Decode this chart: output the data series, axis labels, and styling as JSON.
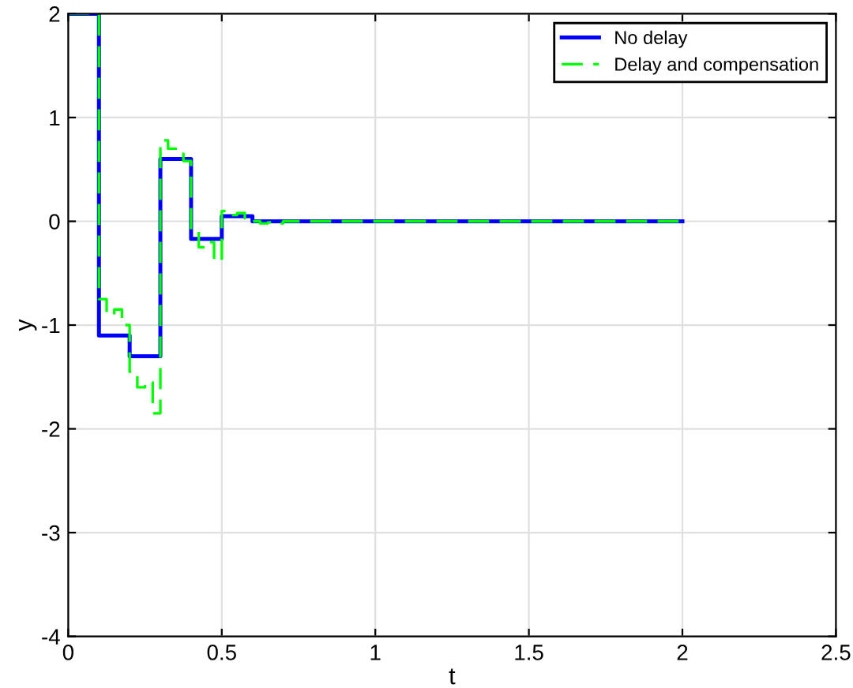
{
  "chart_data": {
    "type": "step",
    "xlabel": "t",
    "ylabel": "y",
    "xlim": [
      0,
      2.5
    ],
    "ylim": [
      -4,
      2
    ],
    "xticks": [
      0,
      0.5,
      1,
      1.5,
      2,
      2.5
    ],
    "yticks": [
      -4,
      -3,
      -2,
      -1,
      0,
      1,
      2
    ],
    "grid": true,
    "legend": "top right",
    "series": [
      {
        "name": "No delay",
        "color": "#0000ff",
        "line_style": "solid",
        "x": [
          0,
          0.1,
          0.2,
          0.3,
          0.4,
          0.5,
          0.6,
          0.7,
          0.8,
          0.9,
          1.0,
          1.1,
          1.2,
          1.3,
          1.4,
          1.5,
          1.6,
          1.7,
          1.8,
          1.9,
          2.0
        ],
        "values": [
          2,
          -1.1,
          -1.3,
          0.6,
          -0.17,
          0.05,
          0.0,
          0,
          0,
          0,
          0,
          0,
          0,
          0,
          0,
          0,
          0,
          0,
          0,
          0,
          0
        ]
      },
      {
        "name": "Delay and compensation",
        "color": "#00ff00",
        "line_style": "dashed",
        "x": [
          0,
          0.1,
          0.125,
          0.15,
          0.175,
          0.2,
          0.225,
          0.25,
          0.275,
          0.3,
          0.325,
          0.35,
          0.375,
          0.4,
          0.425,
          0.45,
          0.475,
          0.5,
          0.525,
          0.55,
          0.575,
          0.6,
          0.625,
          0.65,
          0.675,
          0.7,
          2.0
        ],
        "values": [
          2,
          -0.75,
          -0.9,
          -0.85,
          -1.0,
          -1.45,
          -1.6,
          -1.55,
          -1.85,
          0.78,
          0.7,
          0.65,
          0.58,
          -0.1,
          -0.25,
          -0.2,
          -0.38,
          0.1,
          0.06,
          0.08,
          0.03,
          0.0,
          -0.02,
          -0.01,
          -0.02,
          0,
          0
        ]
      }
    ]
  }
}
